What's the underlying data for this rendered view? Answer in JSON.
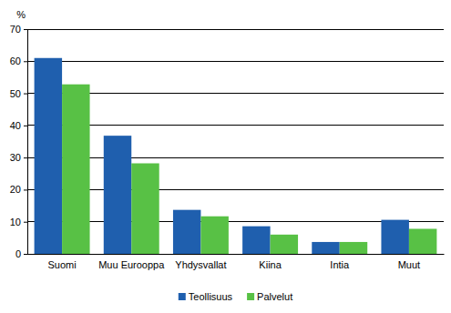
{
  "chart_data": {
    "type": "bar",
    "y_label": "%",
    "categories": [
      "Suomi",
      "Muu Eurooppa",
      "Yhdysvallat",
      "Kiina",
      "Intia",
      "Muut"
    ],
    "series": [
      {
        "name": "Teollisuus",
        "color": "#1f5fae",
        "values": [
          61,
          36.8,
          13.7,
          8.6,
          3.7,
          10.6
        ]
      },
      {
        "name": "Palvelut",
        "color": "#58c145",
        "values": [
          52.8,
          28.2,
          11.7,
          6.0,
          3.7,
          7.8
        ]
      }
    ],
    "ylim": [
      0,
      70
    ],
    "yticks": [
      0,
      10,
      20,
      30,
      40,
      50,
      60,
      70
    ],
    "grid": true,
    "legend": "bottom"
  }
}
